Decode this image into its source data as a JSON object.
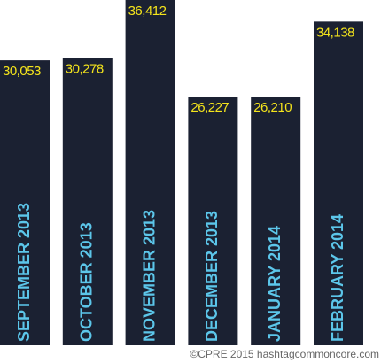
{
  "chart_data": {
    "type": "bar",
    "categories": [
      "SEPTEMBER 2013",
      "OCTOBER 2013",
      "NOVEMBER 2013",
      "DECEMBER 2013",
      "JANUARY 2014",
      "FEBRUARY 2014"
    ],
    "values": [
      30053,
      30278,
      36412,
      26227,
      26210,
      34138
    ],
    "value_labels": [
      "30,053",
      "30,278",
      "36,412",
      "26,227",
      "26,210",
      "34,138"
    ],
    "color": "#1b2132",
    "label_color": "#f4e41c",
    "category_color": "#5cc6ea",
    "credit": "©CPRE 2015 hashtagcommoncore.com"
  }
}
